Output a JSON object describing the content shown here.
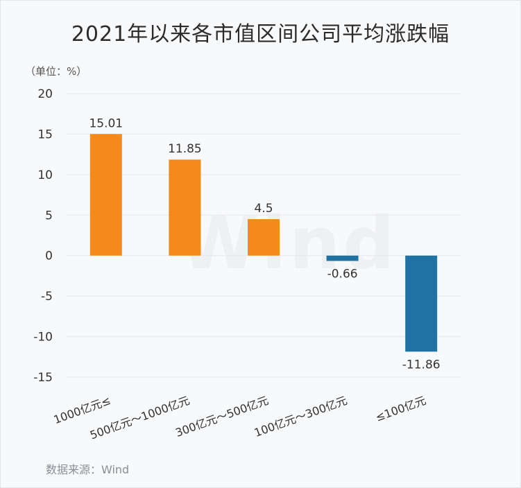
{
  "title": "2021年以来各市值区间公司平均涨跌幅",
  "unit_label": "（单位：%）",
  "source": "数据来源：Wind",
  "watermark": "Wind",
  "colors": {
    "positive": "#f5891a",
    "negative": "#1f72a3",
    "grid": "#e6e8eb",
    "text": "#333333"
  },
  "chart_data": {
    "type": "bar",
    "categories": [
      "1000亿元≤",
      "500亿元～1000亿元",
      "300亿元～500亿元",
      "100亿元～300亿元",
      "≤100亿元"
    ],
    "values": [
      15.01,
      11.85,
      4.5,
      -0.66,
      -11.86
    ],
    "data_labels": [
      "15.01",
      "11.85",
      "4.5",
      "-0.66",
      "-11.86"
    ],
    "yticks": [
      20,
      15,
      10,
      5,
      0,
      -5,
      -10,
      -15
    ],
    "ylim": [
      -15,
      20
    ],
    "grid": true,
    "legend": "none",
    "xlabel": "",
    "ylabel": ""
  }
}
